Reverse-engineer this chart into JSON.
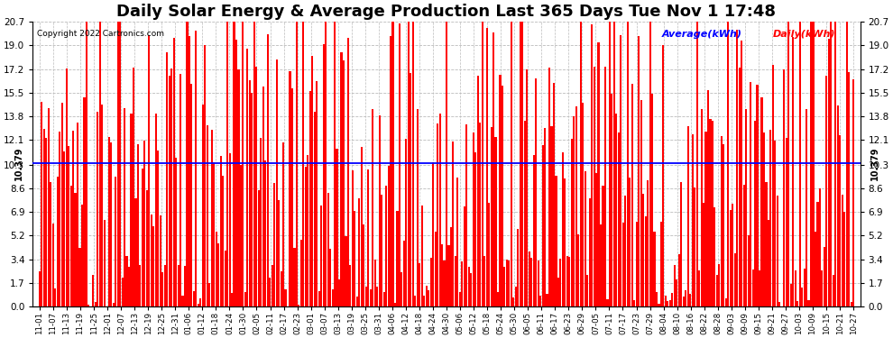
{
  "title": "Daily Solar Energy & Average Production Last 365 Days Tue Nov 1 17:48",
  "copyright": "Copyright 2022 Cartronics.com",
  "average_value": 10.379,
  "ylim": [
    0.0,
    20.7
  ],
  "yticks": [
    0.0,
    1.7,
    3.4,
    5.2,
    6.9,
    8.6,
    10.3,
    12.1,
    13.8,
    15.5,
    17.2,
    19.0,
    20.7
  ],
  "bar_color": "#ff0000",
  "average_line_color": "#0000ff",
  "grid_color": "#bbbbbb",
  "background_color": "#ffffff",
  "title_fontsize": 13,
  "legend_average_label": "Average(kWh)",
  "legend_daily_label": "Daily(kWh)",
  "legend_average_color": "#0000ff",
  "legend_daily_color": "#ff0000",
  "x_tick_labels": [
    "11-01",
    "11-07",
    "11-13",
    "11-19",
    "11-25",
    "12-01",
    "12-07",
    "12-13",
    "12-19",
    "12-25",
    "12-31",
    "01-06",
    "01-12",
    "01-18",
    "01-24",
    "01-30",
    "02-05",
    "02-11",
    "02-17",
    "02-23",
    "03-01",
    "03-07",
    "03-13",
    "03-19",
    "03-25",
    "03-31",
    "04-06",
    "04-12",
    "04-18",
    "04-24",
    "04-30",
    "05-06",
    "05-12",
    "05-18",
    "05-24",
    "05-30",
    "06-05",
    "06-11",
    "06-17",
    "06-23",
    "06-29",
    "07-05",
    "07-11",
    "07-17",
    "07-23",
    "07-29",
    "08-04",
    "08-10",
    "08-16",
    "08-22",
    "08-28",
    "09-03",
    "09-09",
    "09-15",
    "09-21",
    "09-27",
    "10-03",
    "10-09",
    "10-15",
    "10-21",
    "10-27"
  ]
}
